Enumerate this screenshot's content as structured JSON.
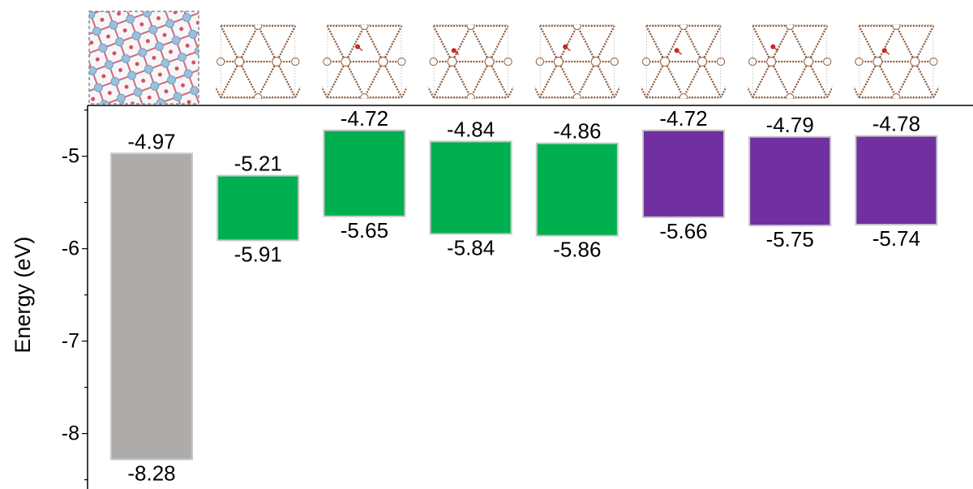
{
  "chart_data": {
    "type": "floating-bar",
    "ylabel": "Energy (eV)",
    "ylim": [
      -8.6,
      -4.45
    ],
    "yticks": [
      -8,
      -7,
      -6,
      -5
    ],
    "ytick_labels": [
      "-8",
      "-7",
      "-6",
      "-5"
    ],
    "categories": [
      "",
      "",
      "",
      "",
      "",
      "",
      "",
      ""
    ],
    "bars": [
      {
        "top": -4.97,
        "bottom": -8.28,
        "top_label": "-4.97",
        "bottom_label": "-8.28",
        "color": "#aeacab"
      },
      {
        "top": -5.21,
        "bottom": -5.91,
        "top_label": "-5.21",
        "bottom_label": "-5.91",
        "color": "#00b050"
      },
      {
        "top": -4.72,
        "bottom": -5.65,
        "top_label": "-4.72",
        "bottom_label": "-5.65",
        "color": "#00b050"
      },
      {
        "top": -4.84,
        "bottom": -5.84,
        "top_label": "-4.84",
        "bottom_label": "-5.84",
        "color": "#00b050"
      },
      {
        "top": -4.86,
        "bottom": -5.86,
        "top_label": "-4.86",
        "bottom_label": "-5.86",
        "color": "#00b050"
      },
      {
        "top": -4.72,
        "bottom": -5.66,
        "top_label": "-4.72",
        "bottom_label": "-5.66",
        "color": "#7030a0"
      },
      {
        "top": -4.79,
        "bottom": -5.75,
        "top_label": "-4.79",
        "bottom_label": "-5.75",
        "color": "#7030a0"
      },
      {
        "top": -4.78,
        "bottom": -5.74,
        "top_label": "-4.78",
        "bottom_label": "-5.74",
        "color": "#7030a0"
      }
    ],
    "structure_images": [
      {
        "icon": "slab-structure-icon"
      },
      {
        "icon": "graphyne-lattice-icon"
      },
      {
        "icon": "graphyne-lattice-icon"
      },
      {
        "icon": "graphyne-lattice-icon"
      },
      {
        "icon": "graphyne-lattice-icon"
      },
      {
        "icon": "graphyne-lattice-icon"
      },
      {
        "icon": "graphyne-lattice-icon"
      },
      {
        "icon": "graphyne-lattice-icon"
      }
    ],
    "grid": false
  }
}
